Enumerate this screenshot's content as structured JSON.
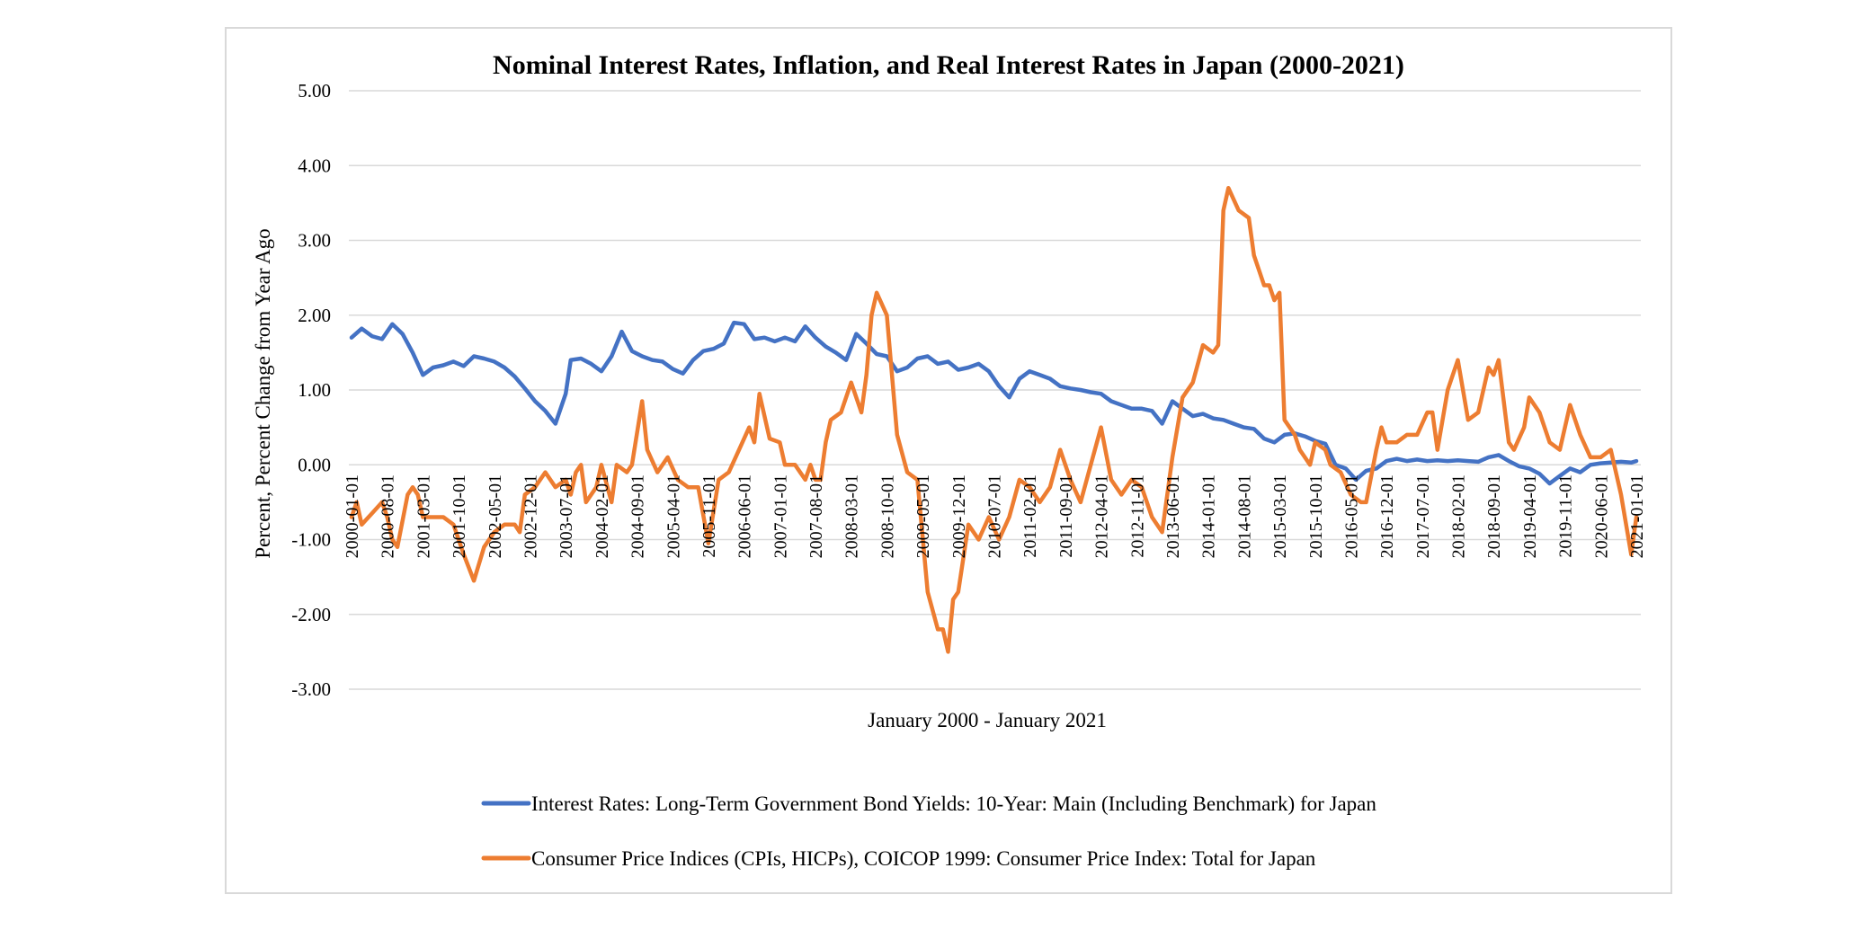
{
  "chart_data": {
    "type": "line",
    "title": "Nominal Interest Rates, Inflation, and Real Interest Rates in Japan (2000-2021)",
    "xlabel": "January 2000 - January 2021",
    "ylabel": "Percent, Percent Change from Year Ago",
    "ylim": [
      -3,
      5
    ],
    "yticks": [
      "5.00",
      "4.00",
      "3.00",
      "2.00",
      "1.00",
      "0.00",
      "-1.00",
      "-2.00",
      "-3.00"
    ],
    "grid": true,
    "legend_position": "bottom",
    "x_start": "2000-01",
    "x_end": "2021-01",
    "x_tick_labels": [
      "2000-01-01",
      "2000-08-01",
      "2001-03-01",
      "2001-10-01",
      "2002-05-01",
      "2002-12-01",
      "2003-07-01",
      "2004-02-01",
      "2004-09-01",
      "2005-04-01",
      "2005-11-01",
      "2006-06-01",
      "2007-01-01",
      "2007-08-01",
      "2008-03-01",
      "2008-10-01",
      "2009-05-01",
      "2009-12-01",
      "2010-07-01",
      "2011-02-01",
      "2011-09-01",
      "2012-04-01",
      "2012-11-01",
      "2013-06-01",
      "2014-01-01",
      "2014-08-01",
      "2015-03-01",
      "2015-10-01",
      "2016-05-01",
      "2016-12-01",
      "2017-07-01",
      "2018-02-01",
      "2018-09-01",
      "2019-04-01",
      "2019-11-01",
      "2020-06-01",
      "2021-01-01"
    ],
    "series": [
      {
        "name": "Interest Rates: Long-Term Government Bond Yields: 10-Year: Main (Including Benchmark) for Japan",
        "color": "#4472c4",
        "points": [
          [
            "2000-01",
            1.7
          ],
          [
            "2000-03",
            1.82
          ],
          [
            "2000-05",
            1.72
          ],
          [
            "2000-07",
            1.68
          ],
          [
            "2000-09",
            1.88
          ],
          [
            "2000-11",
            1.75
          ],
          [
            "2001-01",
            1.5
          ],
          [
            "2001-03",
            1.2
          ],
          [
            "2001-05",
            1.3
          ],
          [
            "2001-07",
            1.33
          ],
          [
            "2001-09",
            1.38
          ],
          [
            "2001-11",
            1.32
          ],
          [
            "2002-01",
            1.45
          ],
          [
            "2002-03",
            1.42
          ],
          [
            "2002-05",
            1.38
          ],
          [
            "2002-07",
            1.3
          ],
          [
            "2002-09",
            1.18
          ],
          [
            "2002-11",
            1.02
          ],
          [
            "2003-01",
            0.85
          ],
          [
            "2003-03",
            0.72
          ],
          [
            "2003-05",
            0.55
          ],
          [
            "2003-07",
            0.95
          ],
          [
            "2003-08",
            1.4
          ],
          [
            "2003-10",
            1.42
          ],
          [
            "2003-12",
            1.35
          ],
          [
            "2004-02",
            1.25
          ],
          [
            "2004-04",
            1.45
          ],
          [
            "2004-06",
            1.78
          ],
          [
            "2004-08",
            1.52
          ],
          [
            "2004-10",
            1.45
          ],
          [
            "2004-12",
            1.4
          ],
          [
            "2005-02",
            1.38
          ],
          [
            "2005-04",
            1.28
          ],
          [
            "2005-06",
            1.22
          ],
          [
            "2005-08",
            1.4
          ],
          [
            "2005-10",
            1.52
          ],
          [
            "2005-12",
            1.55
          ],
          [
            "2006-02",
            1.62
          ],
          [
            "2006-04",
            1.9
          ],
          [
            "2006-06",
            1.88
          ],
          [
            "2006-08",
            1.68
          ],
          [
            "2006-10",
            1.7
          ],
          [
            "2006-12",
            1.65
          ],
          [
            "2007-02",
            1.7
          ],
          [
            "2007-04",
            1.65
          ],
          [
            "2007-06",
            1.85
          ],
          [
            "2007-08",
            1.7
          ],
          [
            "2007-10",
            1.58
          ],
          [
            "2007-12",
            1.5
          ],
          [
            "2008-02",
            1.4
          ],
          [
            "2008-04",
            1.75
          ],
          [
            "2008-06",
            1.62
          ],
          [
            "2008-08",
            1.48
          ],
          [
            "2008-10",
            1.45
          ],
          [
            "2008-12",
            1.25
          ],
          [
            "2009-02",
            1.3
          ],
          [
            "2009-04",
            1.42
          ],
          [
            "2009-06",
            1.45
          ],
          [
            "2009-08",
            1.35
          ],
          [
            "2009-10",
            1.38
          ],
          [
            "2009-12",
            1.27
          ],
          [
            "2010-02",
            1.3
          ],
          [
            "2010-04",
            1.35
          ],
          [
            "2010-06",
            1.25
          ],
          [
            "2010-08",
            1.05
          ],
          [
            "2010-10",
            0.9
          ],
          [
            "2010-12",
            1.15
          ],
          [
            "2011-02",
            1.25
          ],
          [
            "2011-04",
            1.2
          ],
          [
            "2011-06",
            1.15
          ],
          [
            "2011-08",
            1.05
          ],
          [
            "2011-10",
            1.02
          ],
          [
            "2011-12",
            1.0
          ],
          [
            "2012-02",
            0.97
          ],
          [
            "2012-04",
            0.95
          ],
          [
            "2012-06",
            0.85
          ],
          [
            "2012-08",
            0.8
          ],
          [
            "2012-10",
            0.75
          ],
          [
            "2012-12",
            0.75
          ],
          [
            "2013-02",
            0.72
          ],
          [
            "2013-04",
            0.55
          ],
          [
            "2013-06",
            0.85
          ],
          [
            "2013-08",
            0.75
          ],
          [
            "2013-10",
            0.65
          ],
          [
            "2013-12",
            0.68
          ],
          [
            "2014-02",
            0.62
          ],
          [
            "2014-04",
            0.6
          ],
          [
            "2014-06",
            0.55
          ],
          [
            "2014-08",
            0.5
          ],
          [
            "2014-10",
            0.48
          ],
          [
            "2014-12",
            0.35
          ],
          [
            "2015-02",
            0.3
          ],
          [
            "2015-04",
            0.4
          ],
          [
            "2015-06",
            0.42
          ],
          [
            "2015-08",
            0.38
          ],
          [
            "2015-10",
            0.32
          ],
          [
            "2015-12",
            0.28
          ],
          [
            "2016-02",
            0.0
          ],
          [
            "2016-04",
            -0.05
          ],
          [
            "2016-06",
            -0.2
          ],
          [
            "2016-08",
            -0.08
          ],
          [
            "2016-10",
            -0.05
          ],
          [
            "2016-12",
            0.05
          ],
          [
            "2017-02",
            0.08
          ],
          [
            "2017-04",
            0.05
          ],
          [
            "2017-06",
            0.07
          ],
          [
            "2017-08",
            0.05
          ],
          [
            "2017-10",
            0.06
          ],
          [
            "2017-12",
            0.05
          ],
          [
            "2018-02",
            0.06
          ],
          [
            "2018-04",
            0.05
          ],
          [
            "2018-06",
            0.04
          ],
          [
            "2018-08",
            0.1
          ],
          [
            "2018-10",
            0.13
          ],
          [
            "2018-12",
            0.05
          ],
          [
            "2019-02",
            -0.02
          ],
          [
            "2019-04",
            -0.05
          ],
          [
            "2019-06",
            -0.12
          ],
          [
            "2019-08",
            -0.25
          ],
          [
            "2019-10",
            -0.15
          ],
          [
            "2019-12",
            -0.05
          ],
          [
            "2020-02",
            -0.1
          ],
          [
            "2020-04",
            0.0
          ],
          [
            "2020-06",
            0.02
          ],
          [
            "2020-08",
            0.03
          ],
          [
            "2020-10",
            0.04
          ],
          [
            "2020-12",
            0.03
          ],
          [
            "2021-01",
            0.05
          ]
        ]
      },
      {
        "name": "Consumer Price Indices (CPIs, HICPs), COICOP 1999: Consumer Price Index: Total for Japan",
        "color": "#ed7d31",
        "points": [
          [
            "2000-01",
            -0.7
          ],
          [
            "2000-02",
            -0.5
          ],
          [
            "2000-03",
            -0.8
          ],
          [
            "2000-05",
            -0.65
          ],
          [
            "2000-07",
            -0.5
          ],
          [
            "2000-08",
            -0.7
          ],
          [
            "2000-09",
            -1.0
          ],
          [
            "2000-10",
            -1.1
          ],
          [
            "2000-12",
            -0.4
          ],
          [
            "2001-01",
            -0.3
          ],
          [
            "2001-02",
            -0.4
          ],
          [
            "2001-03",
            -0.7
          ],
          [
            "2001-05",
            -0.7
          ],
          [
            "2001-07",
            -0.7
          ],
          [
            "2001-09",
            -0.8
          ],
          [
            "2001-11",
            -1.2
          ],
          [
            "2002-01",
            -1.55
          ],
          [
            "2002-03",
            -1.1
          ],
          [
            "2002-05",
            -0.9
          ],
          [
            "2002-07",
            -0.8
          ],
          [
            "2002-09",
            -0.8
          ],
          [
            "2002-10",
            -0.9
          ],
          [
            "2002-11",
            -0.4
          ],
          [
            "2003-01",
            -0.3
          ],
          [
            "2003-03",
            -0.1
          ],
          [
            "2003-05",
            -0.3
          ],
          [
            "2003-07",
            -0.2
          ],
          [
            "2003-08",
            -0.4
          ],
          [
            "2003-09",
            -0.1
          ],
          [
            "2003-10",
            0.0
          ],
          [
            "2003-11",
            -0.5
          ],
          [
            "2004-01",
            -0.3
          ],
          [
            "2004-02",
            0.0
          ],
          [
            "2004-04",
            -0.5
          ],
          [
            "2004-05",
            0.0
          ],
          [
            "2004-07",
            -0.1
          ],
          [
            "2004-08",
            0.0
          ],
          [
            "2004-10",
            0.85
          ],
          [
            "2004-11",
            0.2
          ],
          [
            "2005-01",
            -0.1
          ],
          [
            "2005-03",
            0.1
          ],
          [
            "2005-05",
            -0.2
          ],
          [
            "2005-07",
            -0.3
          ],
          [
            "2005-09",
            -0.3
          ],
          [
            "2005-11",
            -1.05
          ],
          [
            "2006-01",
            -0.2
          ],
          [
            "2006-03",
            -0.1
          ],
          [
            "2006-05",
            0.2
          ],
          [
            "2006-07",
            0.5
          ],
          [
            "2006-08",
            0.3
          ],
          [
            "2006-09",
            0.95
          ],
          [
            "2006-11",
            0.35
          ],
          [
            "2007-01",
            0.3
          ],
          [
            "2007-02",
            0.0
          ],
          [
            "2007-04",
            0.0
          ],
          [
            "2007-06",
            -0.2
          ],
          [
            "2007-07",
            0.0
          ],
          [
            "2007-08",
            -0.2
          ],
          [
            "2007-09",
            -0.2
          ],
          [
            "2007-10",
            0.3
          ],
          [
            "2007-11",
            0.6
          ],
          [
            "2008-01",
            0.7
          ],
          [
            "2008-03",
            1.1
          ],
          [
            "2008-05",
            0.7
          ],
          [
            "2008-06",
            1.2
          ],
          [
            "2008-07",
            2.0
          ],
          [
            "2008-08",
            2.3
          ],
          [
            "2008-10",
            2.0
          ],
          [
            "2008-12",
            0.4
          ],
          [
            "2009-02",
            -0.1
          ],
          [
            "2009-04",
            -0.2
          ],
          [
            "2009-06",
            -1.7
          ],
          [
            "2009-08",
            -2.2
          ],
          [
            "2009-09",
            -2.2
          ],
          [
            "2009-10",
            -2.5
          ],
          [
            "2009-11",
            -1.8
          ],
          [
            "2009-12",
            -1.7
          ],
          [
            "2010-02",
            -0.8
          ],
          [
            "2010-04",
            -1.0
          ],
          [
            "2010-06",
            -0.7
          ],
          [
            "2010-08",
            -1.0
          ],
          [
            "2010-10",
            -0.7
          ],
          [
            "2010-12",
            -0.2
          ],
          [
            "2011-02",
            -0.3
          ],
          [
            "2011-04",
            -0.5
          ],
          [
            "2011-06",
            -0.3
          ],
          [
            "2011-08",
            0.2
          ],
          [
            "2011-10",
            -0.2
          ],
          [
            "2011-12",
            -0.5
          ],
          [
            "2012-02",
            0.0
          ],
          [
            "2012-04",
            0.5
          ],
          [
            "2012-06",
            -0.2
          ],
          [
            "2012-08",
            -0.4
          ],
          [
            "2012-10",
            -0.2
          ],
          [
            "2012-12",
            -0.3
          ],
          [
            "2013-02",
            -0.7
          ],
          [
            "2013-04",
            -0.9
          ],
          [
            "2013-06",
            0.1
          ],
          [
            "2013-08",
            0.9
          ],
          [
            "2013-10",
            1.1
          ],
          [
            "2013-12",
            1.6
          ],
          [
            "2014-02",
            1.5
          ],
          [
            "2014-03",
            1.6
          ],
          [
            "2014-04",
            3.4
          ],
          [
            "2014-05",
            3.7
          ],
          [
            "2014-07",
            3.4
          ],
          [
            "2014-09",
            3.3
          ],
          [
            "2014-10",
            2.8
          ],
          [
            "2014-12",
            2.4
          ],
          [
            "2015-01",
            2.4
          ],
          [
            "2015-02",
            2.2
          ],
          [
            "2015-03",
            2.3
          ],
          [
            "2015-04",
            0.6
          ],
          [
            "2015-06",
            0.4
          ],
          [
            "2015-07",
            0.2
          ],
          [
            "2015-09",
            0.0
          ],
          [
            "2015-10",
            0.3
          ],
          [
            "2015-12",
            0.2
          ],
          [
            "2016-01",
            0.0
          ],
          [
            "2016-03",
            -0.1
          ],
          [
            "2016-05",
            -0.4
          ],
          [
            "2016-07",
            -0.5
          ],
          [
            "2016-08",
            -0.5
          ],
          [
            "2016-10",
            0.2
          ],
          [
            "2016-11",
            0.5
          ],
          [
            "2016-12",
            0.3
          ],
          [
            "2017-02",
            0.3
          ],
          [
            "2017-04",
            0.4
          ],
          [
            "2017-06",
            0.4
          ],
          [
            "2017-08",
            0.7
          ],
          [
            "2017-09",
            0.7
          ],
          [
            "2017-10",
            0.2
          ],
          [
            "2017-12",
            1.0
          ],
          [
            "2018-02",
            1.4
          ],
          [
            "2018-04",
            0.6
          ],
          [
            "2018-06",
            0.7
          ],
          [
            "2018-08",
            1.3
          ],
          [
            "2018-09",
            1.2
          ],
          [
            "2018-10",
            1.4
          ],
          [
            "2018-12",
            0.3
          ],
          [
            "2019-01",
            0.2
          ],
          [
            "2019-03",
            0.5
          ],
          [
            "2019-04",
            0.9
          ],
          [
            "2019-06",
            0.7
          ],
          [
            "2019-08",
            0.3
          ],
          [
            "2019-10",
            0.2
          ],
          [
            "2019-12",
            0.8
          ],
          [
            "2020-02",
            0.4
          ],
          [
            "2020-04",
            0.1
          ],
          [
            "2020-06",
            0.1
          ],
          [
            "2020-08",
            0.2
          ],
          [
            "2020-10",
            -0.4
          ],
          [
            "2020-12",
            -1.2
          ],
          [
            "2021-01",
            -0.7
          ]
        ]
      }
    ]
  }
}
